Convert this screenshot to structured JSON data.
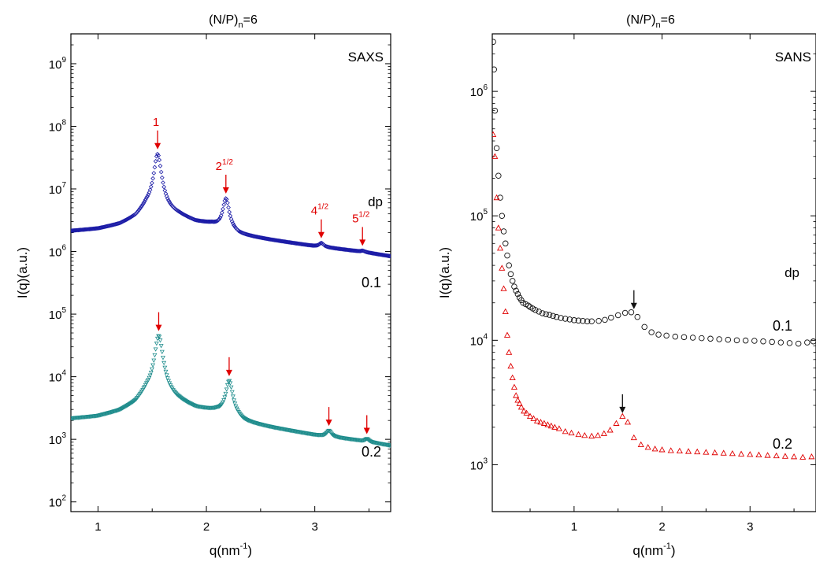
{
  "chart_data": [
    {
      "type": "scatter",
      "title": "(N/P)_n=6",
      "title_main": "(N/P)",
      "title_sub": "n",
      "title_tail": "=6",
      "tag": "SAXS",
      "xlabel": "q(nm",
      "xlabel_sup": "-1",
      "xlabel_tail": ")",
      "ylabel": "I(q)(a.u.)",
      "xscale": "linear",
      "yscale": "log",
      "xlim": [
        0.75,
        3.7
      ],
      "ylim": [
        70,
        3000000000
      ],
      "xticks": [
        1,
        2,
        3
      ],
      "yticks": [
        {
          "value": 100,
          "base": "10",
          "exp": "2"
        },
        {
          "value": 1000,
          "base": "10",
          "exp": "3"
        },
        {
          "value": 10000,
          "base": "10",
          "exp": "4"
        },
        {
          "value": 100000,
          "base": "10",
          "exp": "5"
        },
        {
          "value": 1000000,
          "base": "10",
          "exp": "6"
        },
        {
          "value": 10000000,
          "base": "10",
          "exp": "7"
        },
        {
          "value": 100000000,
          "base": "10",
          "exp": "8"
        },
        {
          "value": 1000000000,
          "base": "10",
          "exp": "9"
        }
      ],
      "legend_title": "dp",
      "grid": false,
      "series": [
        {
          "name": "0.1",
          "color": "#1a1aa6",
          "marker": "diamond",
          "baseline": [
            [
              0.75,
              2100000
            ],
            [
              1.0,
              2250000
            ],
            [
              1.2,
              2600000
            ],
            [
              1.35,
              3300000
            ],
            [
              1.45,
              4800000
            ],
            [
              1.75,
              3600000
            ],
            [
              1.9,
              2900000
            ],
            [
              2.05,
              2700000
            ],
            [
              2.3,
              1800000
            ],
            [
              2.6,
              1500000
            ],
            [
              3.0,
              1200000
            ],
            [
              3.4,
              1000000
            ],
            [
              3.7,
              830000
            ]
          ],
          "peaks": [
            {
              "q": 1.55,
              "I": 36000000,
              "w": 0.03
            },
            {
              "q": 2.18,
              "I": 7000000,
              "w": 0.028
            },
            {
              "q": 3.06,
              "I": 1350000,
              "w": 0.025
            },
            {
              "q": 3.44,
              "I": 1020000,
              "w": 0.02
            }
          ]
        },
        {
          "name": "0.2",
          "color": "#1e8c8c",
          "marker": "triangle-down",
          "baseline": [
            [
              0.75,
              2100
            ],
            [
              1.0,
              2250
            ],
            [
              1.2,
              2650
            ],
            [
              1.35,
              3400
            ],
            [
              1.45,
              5000
            ],
            [
              1.75,
              3700
            ],
            [
              1.9,
              3000
            ],
            [
              2.1,
              2750
            ],
            [
              2.35,
              1800
            ],
            [
              2.6,
              1500
            ],
            [
              3.0,
              1150
            ],
            [
              3.4,
              950
            ],
            [
              3.7,
              780
            ]
          ],
          "peaks": [
            {
              "q": 1.56,
              "I": 45000,
              "w": 0.032
            },
            {
              "q": 2.21,
              "I": 8500,
              "w": 0.03
            },
            {
              "q": 3.13,
              "I": 1350,
              "w": 0.025
            },
            {
              "q": 3.48,
              "I": 1000,
              "w": 0.02
            }
          ]
        }
      ],
      "annotations": [
        {
          "q": 1.55,
          "series": 0,
          "base": "1",
          "exp": "",
          "color": "#e00000"
        },
        {
          "q": 2.18,
          "series": 0,
          "base": "2",
          "exp": "1/2",
          "color": "#e00000"
        },
        {
          "q": 3.06,
          "series": 0,
          "base": "4",
          "exp": "1/2",
          "color": "#e00000"
        },
        {
          "q": 3.44,
          "series": 0,
          "base": "5",
          "exp": "1/2",
          "color": "#e00000"
        },
        {
          "q": 1.56,
          "series": 1,
          "base": "",
          "exp": "",
          "color": "#e00000"
        },
        {
          "q": 2.21,
          "series": 1,
          "base": "",
          "exp": "",
          "color": "#e00000"
        },
        {
          "q": 3.13,
          "series": 1,
          "base": "",
          "exp": "",
          "color": "#e00000"
        },
        {
          "q": 3.48,
          "series": 1,
          "base": "",
          "exp": "",
          "color": "#e00000"
        }
      ]
    },
    {
      "type": "scatter",
      "title": "(N/P)_n=6",
      "title_main": "(N/P)",
      "title_sub": "n",
      "title_tail": "=6",
      "tag": "SANS",
      "xlabel": "q(nm",
      "xlabel_sup": "-1",
      "xlabel_tail": ")",
      "ylabel": "I(q)(a.u.)",
      "xscale": "linear",
      "yscale": "log",
      "xlim": [
        0.07,
        3.75
      ],
      "ylim": [
        420,
        2900000
      ],
      "xticks": [
        1,
        2,
        3
      ],
      "yticks": [
        {
          "value": 1000,
          "base": "10",
          "exp": "3"
        },
        {
          "value": 10000,
          "base": "10",
          "exp": "4"
        },
        {
          "value": 100000,
          "base": "10",
          "exp": "5"
        },
        {
          "value": 1000000,
          "base": "10",
          "exp": "6"
        }
      ],
      "legend_title": "dp",
      "grid": false,
      "series": [
        {
          "name": "0.1",
          "color": "#111111",
          "marker": "circle",
          "points": [
            [
              0.08,
              2500000
            ],
            [
              0.09,
              1500000
            ],
            [
              0.1,
              700000
            ],
            [
              0.12,
              350000
            ],
            [
              0.14,
              210000
            ],
            [
              0.16,
              140000
            ],
            [
              0.18,
              100000
            ],
            [
              0.2,
              75000
            ],
            [
              0.22,
              60000
            ],
            [
              0.24,
              48000
            ],
            [
              0.26,
              40000
            ],
            [
              0.28,
              34000
            ],
            [
              0.3,
              30000
            ],
            [
              0.32,
              27000
            ],
            [
              0.34,
              25000
            ],
            [
              0.36,
              23500
            ],
            [
              0.38,
              22000
            ],
            [
              0.4,
              21000
            ],
            [
              0.42,
              20000
            ],
            [
              0.45,
              19500
            ],
            [
              0.48,
              19000
            ],
            [
              0.5,
              18500
            ],
            [
              0.53,
              18000
            ],
            [
              0.56,
              17500
            ],
            [
              0.6,
              17000
            ],
            [
              0.64,
              16500
            ],
            [
              0.68,
              16200
            ],
            [
              0.72,
              16000
            ],
            [
              0.76,
              15700
            ],
            [
              0.8,
              15400
            ],
            [
              0.85,
              15100
            ],
            [
              0.9,
              14900
            ],
            [
              0.95,
              14700
            ],
            [
              1.0,
              14500
            ],
            [
              1.05,
              14400
            ],
            [
              1.1,
              14300
            ],
            [
              1.15,
              14200
            ],
            [
              1.2,
              14200
            ],
            [
              1.28,
              14300
            ],
            [
              1.35,
              14600
            ],
            [
              1.42,
              15200
            ],
            [
              1.5,
              15900
            ],
            [
              1.58,
              16600
            ],
            [
              1.65,
              16800
            ],
            [
              1.72,
              15400
            ],
            [
              1.8,
              12800
            ],
            [
              1.88,
              11600
            ],
            [
              1.96,
              11100
            ],
            [
              2.05,
              10900
            ],
            [
              2.15,
              10700
            ],
            [
              2.25,
              10600
            ],
            [
              2.35,
              10500
            ],
            [
              2.45,
              10400
            ],
            [
              2.55,
              10300
            ],
            [
              2.65,
              10200
            ],
            [
              2.75,
              10100
            ],
            [
              2.85,
              10000
            ],
            [
              2.95,
              9950
            ],
            [
              3.05,
              9900
            ],
            [
              3.15,
              9800
            ],
            [
              3.25,
              9700
            ],
            [
              3.35,
              9600
            ],
            [
              3.45,
              9500
            ],
            [
              3.55,
              9400
            ],
            [
              3.65,
              9600
            ],
            [
              3.72,
              9800
            ]
          ]
        },
        {
          "name": "0.2",
          "color": "#e00000",
          "marker": "triangle-up",
          "points": [
            [
              0.08,
              450000
            ],
            [
              0.1,
              300000
            ],
            [
              0.12,
              140000
            ],
            [
              0.14,
              80000
            ],
            [
              0.16,
              55000
            ],
            [
              0.18,
              38000
            ],
            [
              0.2,
              26000
            ],
            [
              0.22,
              17000
            ],
            [
              0.24,
              11000
            ],
            [
              0.26,
              8000
            ],
            [
              0.28,
              6200
            ],
            [
              0.3,
              5000
            ],
            [
              0.32,
              4200
            ],
            [
              0.34,
              3600
            ],
            [
              0.36,
              3300
            ],
            [
              0.38,
              3100
            ],
            [
              0.4,
              2900
            ],
            [
              0.43,
              2700
            ],
            [
              0.46,
              2600
            ],
            [
              0.5,
              2450
            ],
            [
              0.54,
              2350
            ],
            [
              0.58,
              2250
            ],
            [
              0.62,
              2200
            ],
            [
              0.66,
              2150
            ],
            [
              0.7,
              2100
            ],
            [
              0.74,
              2050
            ],
            [
              0.78,
              2000
            ],
            [
              0.83,
              1950
            ],
            [
              0.9,
              1850
            ],
            [
              0.97,
              1800
            ],
            [
              1.05,
              1750
            ],
            [
              1.12,
              1720
            ],
            [
              1.2,
              1700
            ],
            [
              1.27,
              1720
            ],
            [
              1.34,
              1780
            ],
            [
              1.41,
              1900
            ],
            [
              1.48,
              2150
            ],
            [
              1.55,
              2450
            ],
            [
              1.61,
              2200
            ],
            [
              1.68,
              1650
            ],
            [
              1.76,
              1450
            ],
            [
              1.84,
              1380
            ],
            [
              1.92,
              1340
            ],
            [
              2.0,
              1320
            ],
            [
              2.1,
              1300
            ],
            [
              2.2,
              1290
            ],
            [
              2.3,
              1280
            ],
            [
              2.4,
              1270
            ],
            [
              2.5,
              1260
            ],
            [
              2.6,
              1250
            ],
            [
              2.7,
              1240
            ],
            [
              2.8,
              1230
            ],
            [
              2.9,
              1220
            ],
            [
              3.0,
              1210
            ],
            [
              3.1,
              1200
            ],
            [
              3.2,
              1190
            ],
            [
              3.3,
              1180
            ],
            [
              3.4,
              1170
            ],
            [
              3.5,
              1160
            ],
            [
              3.6,
              1150
            ],
            [
              3.7,
              1160
            ]
          ]
        }
      ],
      "annotations": [
        {
          "q": 1.68,
          "I": 16800,
          "color": "#111111"
        },
        {
          "q": 1.55,
          "I": 2450,
          "color": "#111111"
        }
      ]
    }
  ]
}
